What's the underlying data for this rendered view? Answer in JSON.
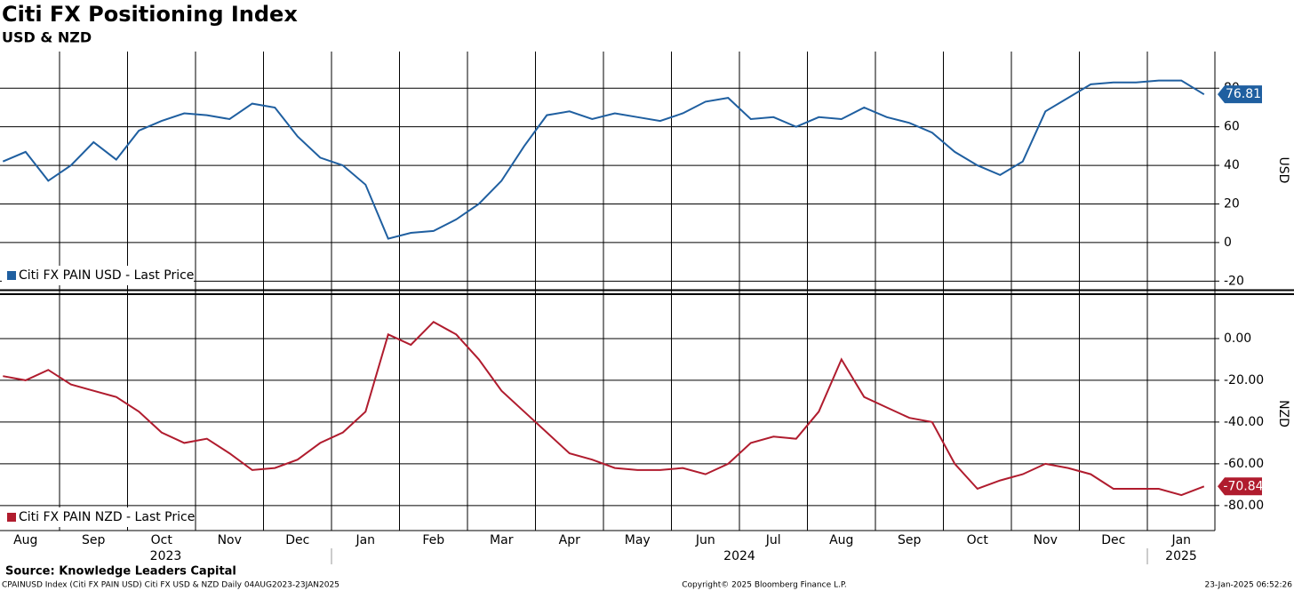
{
  "title": "Citi FX Positioning Index",
  "subtitle": "USD & NZD",
  "x_axis": {
    "months": [
      "Aug",
      "Sep",
      "Oct",
      "Nov",
      "Dec",
      "Jan",
      "Feb",
      "Mar",
      "Apr",
      "May",
      "Jun",
      "Jul",
      "Aug",
      "Sep",
      "Oct",
      "Nov",
      "Dec",
      "Jan"
    ],
    "years": [
      "2023",
      "2024",
      "2025"
    ],
    "x": [
      "Aug 2023",
      "Aug 2023",
      "Aug 2023",
      "Sep 2023",
      "Sep 2023",
      "Sep 2023",
      "Oct 2023",
      "Oct 2023",
      "Oct 2023",
      "Nov 2023",
      "Nov 2023",
      "Nov 2023",
      "Dec 2023",
      "Dec 2023",
      "Dec 2023",
      "Jan 2024",
      "Jan 2024",
      "Jan 2024",
      "Feb 2024",
      "Feb 2024",
      "Feb 2024",
      "Mar 2024",
      "Mar 2024",
      "Mar 2024",
      "Apr 2024",
      "Apr 2024",
      "Apr 2024",
      "May 2024",
      "May 2024",
      "May 2024",
      "Jun 2024",
      "Jun 2024",
      "Jun 2024",
      "Jul 2024",
      "Jul 2024",
      "Jul 2024",
      "Aug 2024",
      "Aug 2024",
      "Aug 2024",
      "Sep 2024",
      "Sep 2024",
      "Sep 2024",
      "Oct 2024",
      "Oct 2024",
      "Oct 2024",
      "Nov 2024",
      "Nov 2024",
      "Nov 2024",
      "Dec 2024",
      "Dec 2024",
      "Dec 2024",
      "Jan 2025",
      "Jan 2025",
      "Jan 2025"
    ]
  },
  "chart_data": [
    {
      "type": "line",
      "y_label": "USD",
      "ylim": [
        -24,
        99
      ],
      "yticks": [
        -20,
        0,
        20,
        40,
        60,
        80
      ],
      "grid": true,
      "series": [
        {
          "name": "Citi FX PAIN USD - Last Price",
          "color": "#1f5fa0",
          "values": [
            42,
            47,
            32,
            40,
            52,
            43,
            58,
            63,
            67,
            66,
            64,
            72,
            70,
            55,
            44,
            40,
            30,
            2,
            5,
            6,
            12,
            20,
            32,
            50,
            66,
            68,
            64,
            67,
            65,
            63,
            67,
            73,
            75,
            64,
            65,
            60,
            65,
            64,
            70,
            65,
            62,
            57,
            47,
            40,
            35,
            42,
            68,
            75,
            82,
            83,
            83,
            84,
            84,
            76.81
          ]
        }
      ]
    },
    {
      "type": "line",
      "y_label": "NZD",
      "ylim": [
        -92,
        20
      ],
      "yticks": [
        {
          "value": -80,
          "label": "-80.00"
        },
        {
          "value": -60,
          "label": "-60.00"
        },
        {
          "value": -40,
          "label": "-40.00"
        },
        {
          "value": -20,
          "label": "-20.00"
        },
        {
          "value": 0,
          "label": "0.00"
        }
      ],
      "grid": true,
      "series": [
        {
          "name": "Citi FX PAIN NZD - Last Price",
          "color": "#b01c2e",
          "values": [
            -18,
            -20,
            -15,
            -22,
            -25,
            -28,
            -35,
            -45,
            -50,
            -48,
            -55,
            -63,
            -62,
            -58,
            -50,
            -45,
            -35,
            2,
            -3,
            8,
            2,
            -10,
            -25,
            -35,
            -45,
            -55,
            -58,
            -62,
            -63,
            -63,
            -62,
            -65,
            -60,
            -50,
            -47,
            -48,
            -35,
            -10,
            -28,
            -33,
            -38,
            -40,
            -60,
            -72,
            -68,
            -65,
            -60,
            -62,
            -65,
            -72,
            -72,
            -72,
            -75,
            -70.84
          ]
        }
      ]
    }
  ],
  "footer": {
    "source": "Source: Knowledge Leaders Capital",
    "left": "CPAINUSD Index (Citi FX PAIN USD) Citi FX USD & NZD  Daily 04AUG2023-23JAN2025",
    "center": "Copyright© 2025 Bloomberg Finance L.P.",
    "right": "23-Jan-2025 06:52:26"
  }
}
